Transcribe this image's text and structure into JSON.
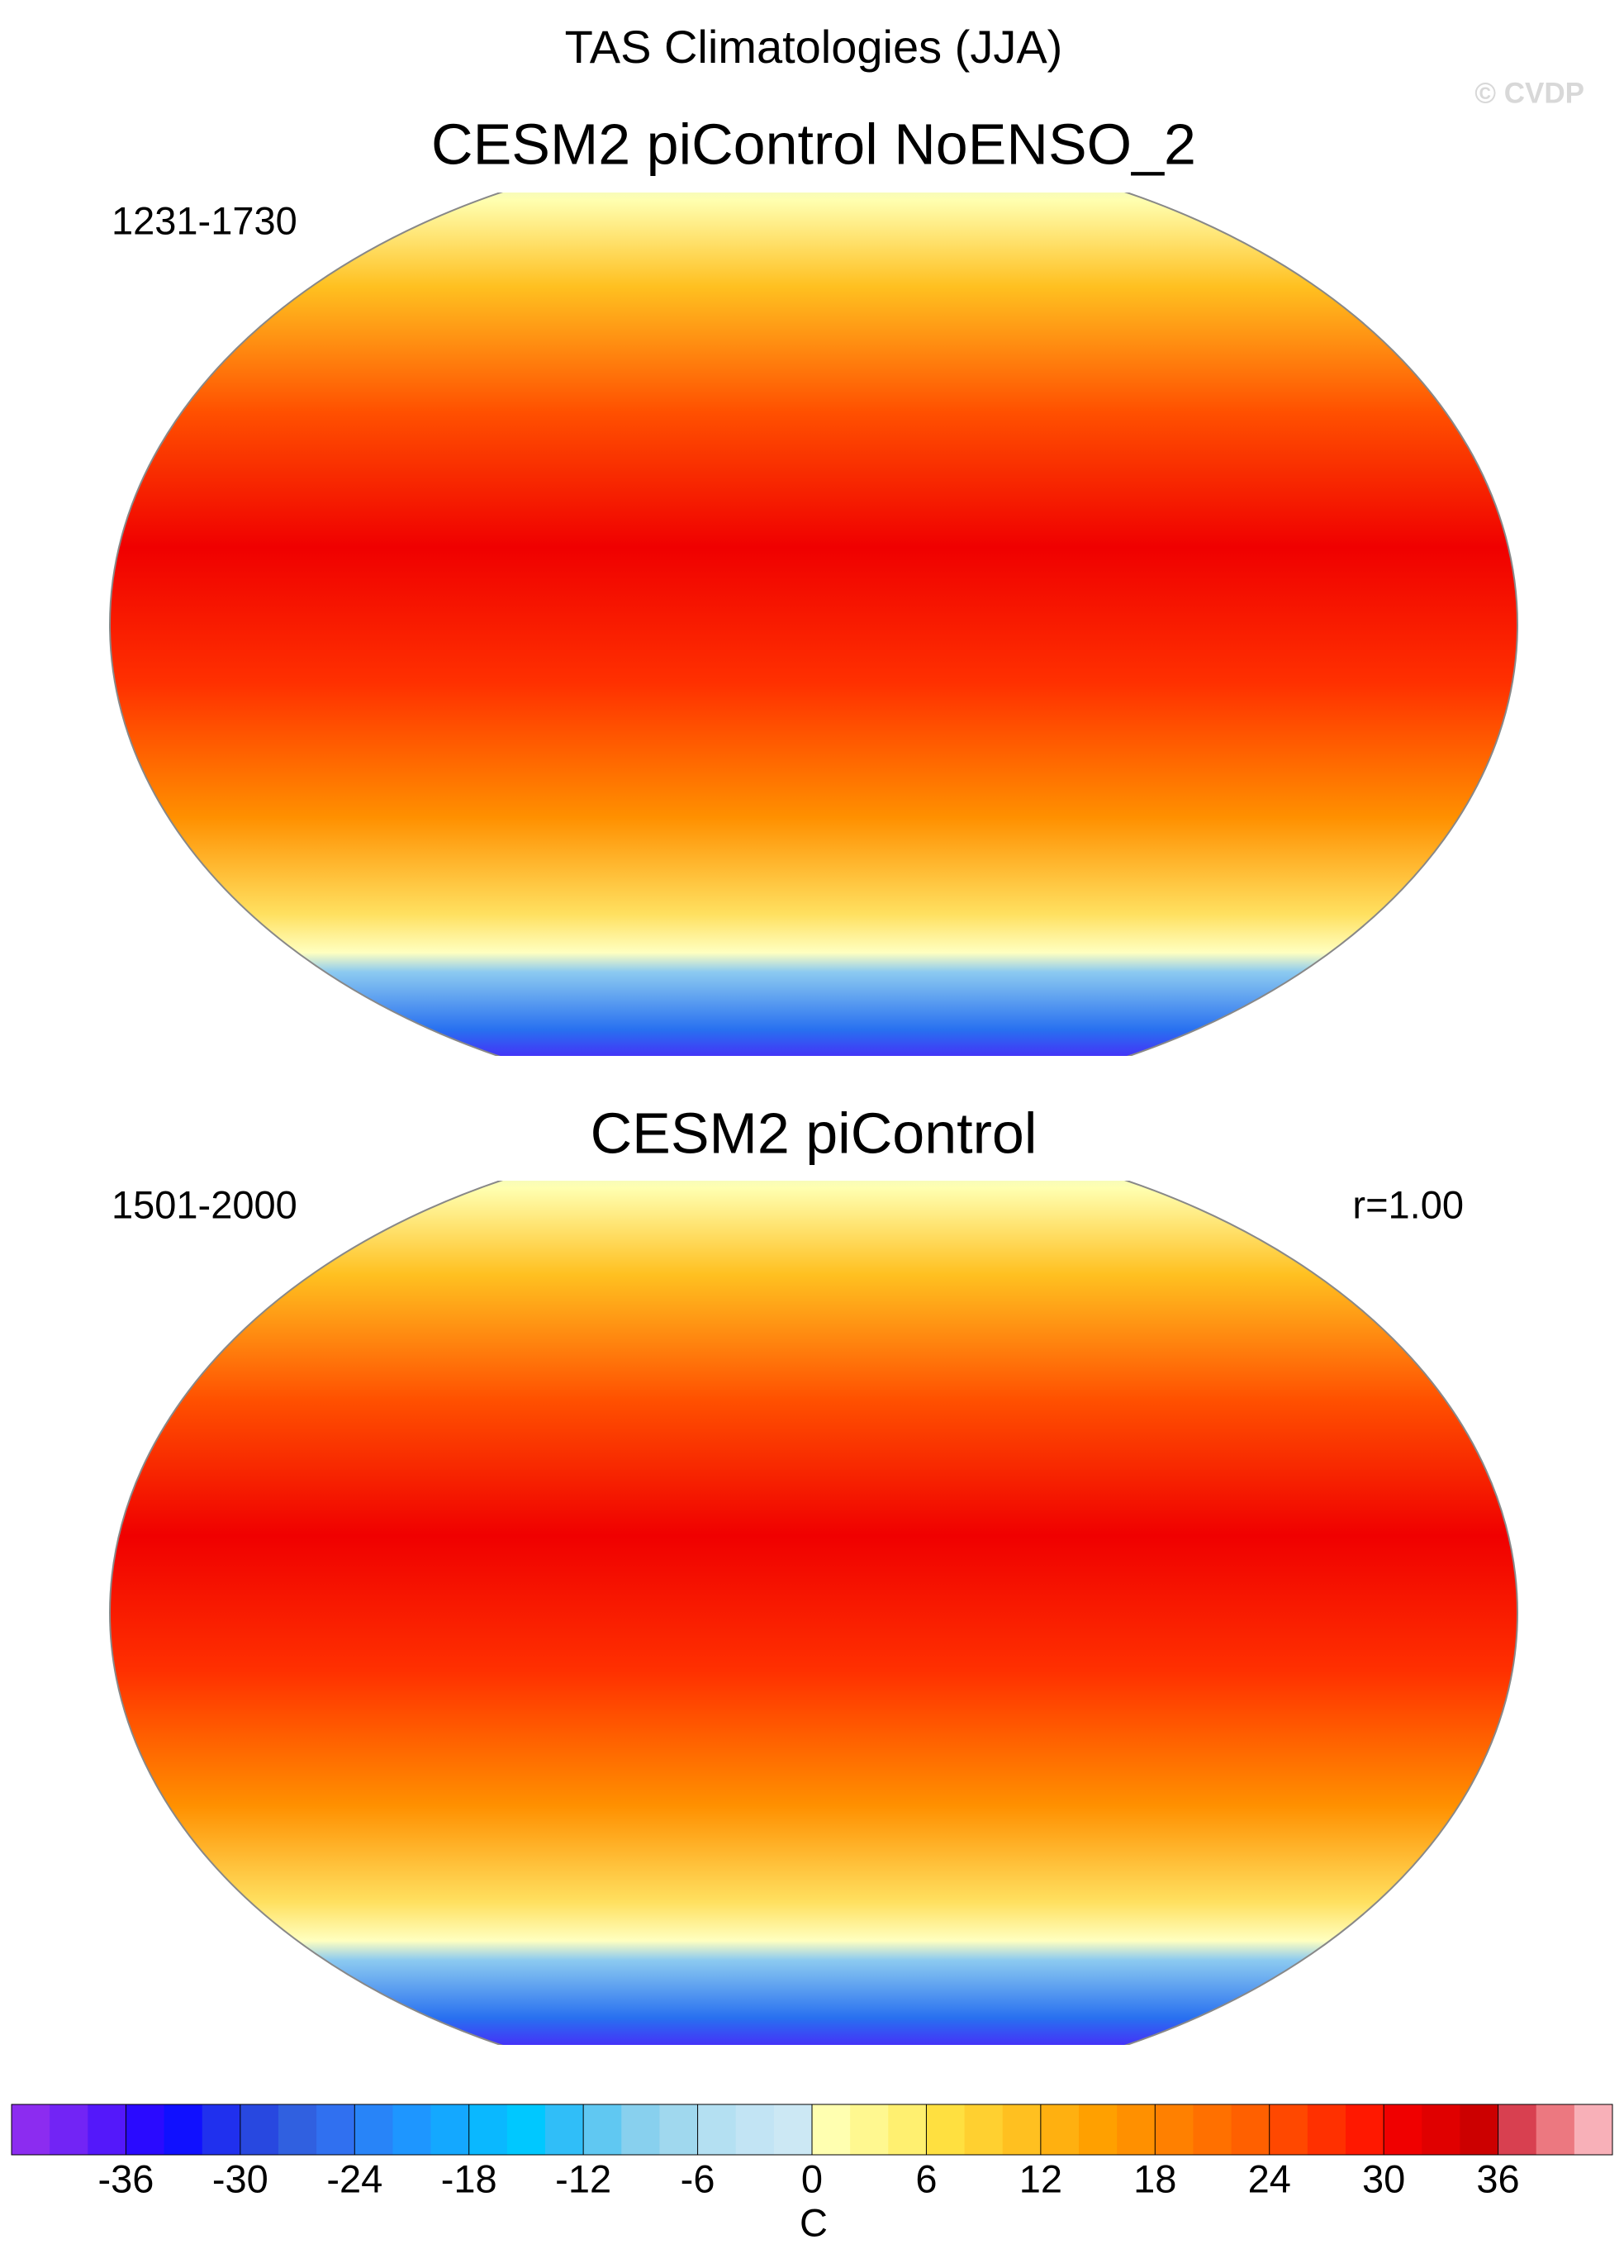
{
  "title": "TAS Climatologies (JJA)",
  "watermark": "© CVDP",
  "panels": [
    {
      "title": "CESM2 piControl NoENSO_2",
      "period": "1231-1730"
    },
    {
      "title": "CESM2 piControl",
      "period": "1501-2000",
      "stat": "r=1.00"
    }
  ],
  "colorbar": {
    "colors": [
      "#8c2cf0",
      "#7224f5",
      "#5418fa",
      "#2a0aff",
      "#1010ff",
      "#2030ee",
      "#2848e0",
      "#3060e0",
      "#3070f0",
      "#2884f8",
      "#1e96ff",
      "#14a8ff",
      "#0ab8ff",
      "#00c8ff",
      "#30bef8",
      "#60c8f2",
      "#88d0ee",
      "#a0d8ee",
      "#b4e0f2",
      "#c2e4f4",
      "#cce8f4",
      "#ffffb0",
      "#fff890",
      "#fff070",
      "#ffe040",
      "#ffd030",
      "#ffc020",
      "#ffb010",
      "#ffa000",
      "#ff9000",
      "#ff8000",
      "#ff7000",
      "#ff6000",
      "#ff4800",
      "#ff3000",
      "#ff1800",
      "#f00000",
      "#e00000",
      "#cc0000",
      "#d84050",
      "#ec7880",
      "#f8b0b8"
    ],
    "xlim": [
      -42,
      42
    ],
    "xticks": [
      -36,
      -30,
      -24,
      -18,
      -12,
      -6,
      0,
      6,
      12,
      18,
      24,
      30,
      36
    ],
    "label": "C"
  }
}
